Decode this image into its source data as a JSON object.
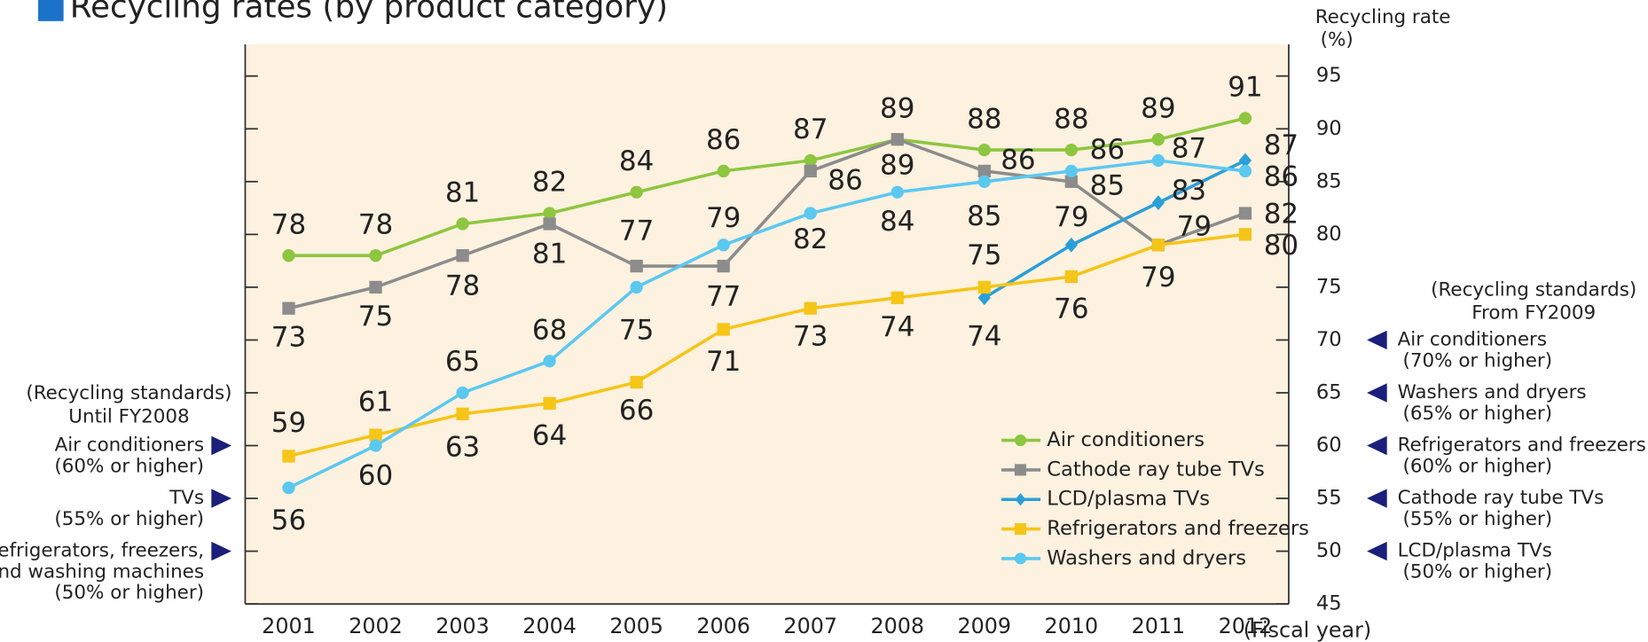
{
  "chart_data": {
    "type": "line",
    "title": "Recycling rates (by product category)",
    "y_label": "Recycling rate",
    "y_unit": "(%)",
    "x_label": "(Fiscal year)",
    "categories": [
      "2001",
      "2002",
      "2003",
      "2004",
      "2005",
      "2006",
      "2007",
      "2008",
      "2009",
      "2010",
      "2011",
      "2012"
    ],
    "series": [
      {
        "name": "Air conditioners",
        "color": "#8dc63f",
        "marker": "circle",
        "values": [
          78,
          78,
          81,
          82,
          84,
          86,
          87,
          89,
          88,
          88,
          89,
          91
        ]
      },
      {
        "name": "Cathode ray tube TVs",
        "color": "#8c8c8c",
        "marker": "square",
        "values": [
          73,
          75,
          78,
          81,
          77,
          77,
          86,
          89,
          86,
          85,
          79,
          82
        ]
      },
      {
        "name": "LCD/plasma TVs",
        "color": "#2a9fd8",
        "marker": "diamond",
        "values": [
          null,
          null,
          null,
          null,
          null,
          null,
          null,
          null,
          74,
          79,
          83,
          87
        ]
      },
      {
        "name": "Refrigerators and freezers",
        "color": "#f5c518",
        "marker": "square",
        "values": [
          59,
          61,
          63,
          64,
          66,
          71,
          73,
          74,
          75,
          76,
          79,
          80
        ]
      },
      {
        "name": "Washers and dryers",
        "color": "#5bc8f0",
        "marker": "circle",
        "values": [
          56,
          60,
          65,
          68,
          75,
          79,
          82,
          84,
          85,
          86,
          87,
          86
        ]
      }
    ],
    "ylim": [
      45,
      98
    ],
    "yticks": [
      45,
      50,
      55,
      60,
      65,
      70,
      75,
      80,
      85,
      90,
      95
    ],
    "standards": [
      {
        "heading": [
          "(Recycling standards)",
          "Until FY2008"
        ],
        "items": [
          {
            "value": 60,
            "lines": [
              "Air conditioners",
              "(60% or higher)"
            ]
          },
          {
            "value": 55,
            "lines": [
              "TVs",
              "(55% or higher)"
            ]
          },
          {
            "value": 50,
            "lines": [
              "Refrigerators, freezers,",
              "and washing machines",
              "(50% or higher)"
            ]
          }
        ]
      },
      {
        "heading": [
          "(Recycling standards)",
          "From FY2009"
        ],
        "items": [
          {
            "value": 70,
            "lines": [
              "Air conditioners",
              "(70% or higher)"
            ]
          },
          {
            "value": 65,
            "lines": [
              "Washers and dryers",
              "(65% or higher)"
            ]
          },
          {
            "value": 60,
            "lines": [
              "Refrigerators and freezers",
              "(60% or higher)"
            ]
          },
          {
            "value": 55,
            "lines": [
              "Cathode ray tube TVs",
              "(55% or higher)"
            ]
          },
          {
            "value": 50,
            "lines": [
              "LCD/plasma TVs",
              "(50% or higher)"
            ]
          }
        ]
      }
    ]
  }
}
